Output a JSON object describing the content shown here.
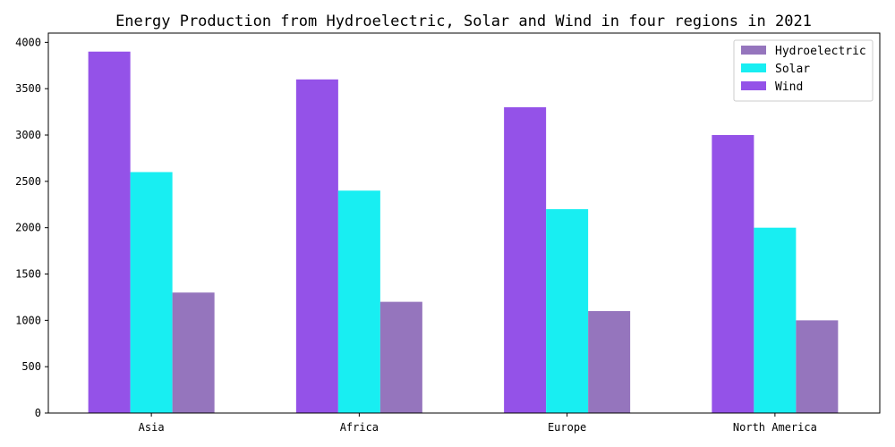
{
  "chart_data": {
    "type": "bar",
    "title": "Energy Production from Hydroelectric, Solar and Wind in four regions in 2021",
    "xlabel": "",
    "ylabel": "",
    "categories": [
      "Asia",
      "Africa",
      "Europe",
      "North America"
    ],
    "series": [
      {
        "name": "Wind",
        "color": "#9452e8",
        "values": [
          3900,
          3600,
          3300,
          3000
        ]
      },
      {
        "name": "Solar",
        "color": "#18eef2",
        "values": [
          2600,
          2400,
          2200,
          2000
        ]
      },
      {
        "name": "Hydroelectric",
        "color": "#9575bd",
        "values": [
          1300,
          1200,
          1100,
          1000
        ]
      }
    ],
    "legend_order": [
      "Hydroelectric",
      "Solar",
      "Wind"
    ],
    "legend_position": "top-right",
    "ylim": [
      0,
      4100
    ],
    "yticks": [
      0,
      500,
      1000,
      1500,
      2000,
      2500,
      3000,
      3500,
      4000
    ],
    "grid": false
  }
}
